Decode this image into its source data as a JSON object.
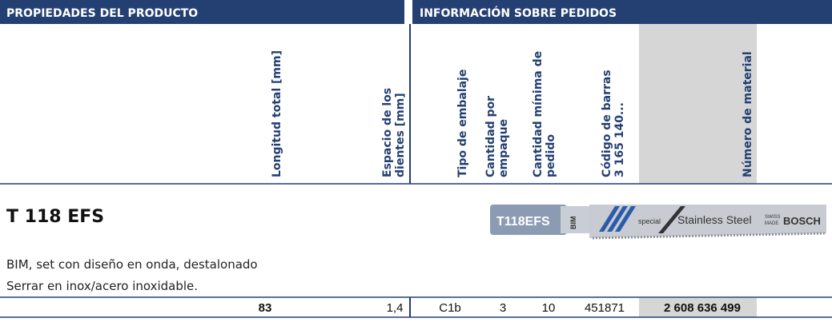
{
  "header": {
    "left": "PROPIEDADES DEL PRODUCTO",
    "right": "INFORMACIÓN SOBRE PEDIDOS"
  },
  "columns": [
    [
      "Longitud total [mm]"
    ],
    [
      "Espacio de los",
      "dientes [mm]"
    ],
    [
      "Tipo de embalaje"
    ],
    [
      "Cantidad por",
      "empaque"
    ],
    [
      "Cantidad mínima de",
      "pedido"
    ],
    [
      "Código de barras",
      "3 165 140..."
    ],
    [
      "Número de material"
    ]
  ],
  "product": {
    "title": "T 118 EFS",
    "blade": {
      "code": "T118EFS",
      "material": "BIM",
      "line": "special",
      "steel": "Stainless Steel",
      "origin": [
        "SWISS",
        "MADE"
      ],
      "brand": "BOSCH"
    },
    "description": [
      "BIM, set con diseño en onda, destalonado",
      "Serrar en inox/acero inoxidable."
    ]
  },
  "row": [
    "83",
    "1,4",
    "C1b",
    "3",
    "10",
    "451871",
    "2 608 636 499"
  ]
}
